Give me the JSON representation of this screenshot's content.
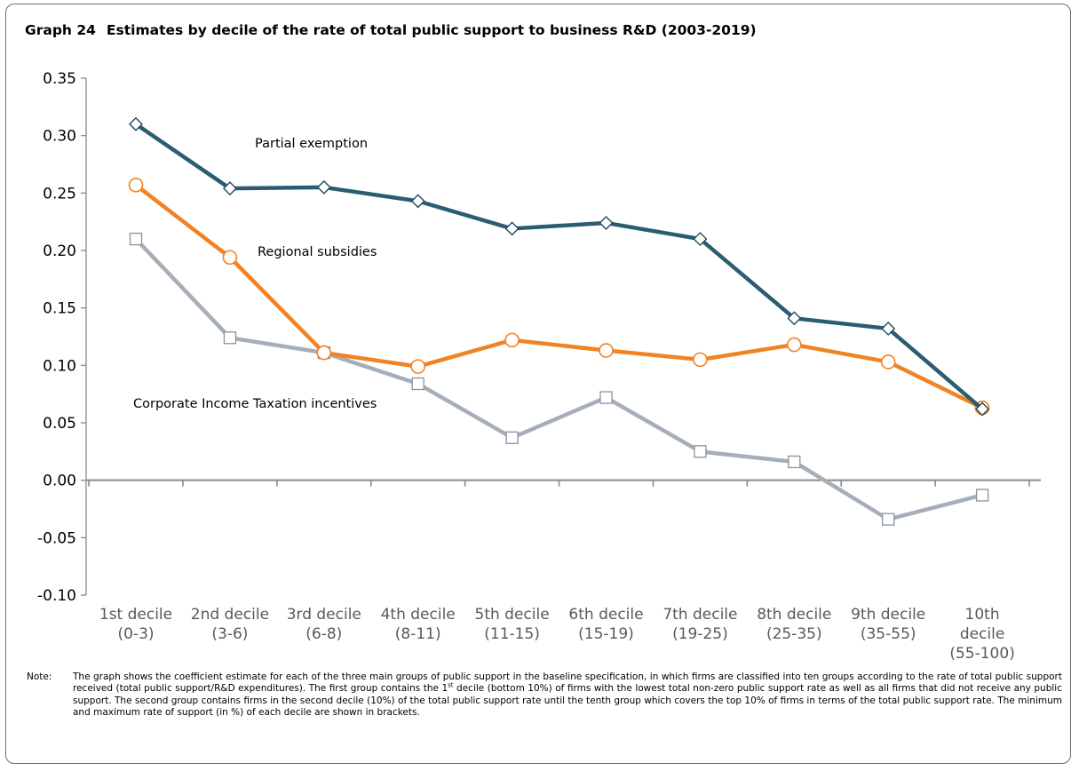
{
  "title": {
    "number": "Graph 24",
    "text": "Estimates by decile of the rate of total public support to business R&D (2003-2019)"
  },
  "chart_data": {
    "type": "line",
    "categories": [
      [
        "1st decile",
        "(0-3)"
      ],
      [
        "2nd decile",
        "(3-6)"
      ],
      [
        "3rd decile",
        "(6-8)"
      ],
      [
        "4th decile",
        "(8-11)"
      ],
      [
        "5th decile",
        "(11-15)"
      ],
      [
        "6th decile",
        "(15-19)"
      ],
      [
        "7th decile",
        "(19-25)"
      ],
      [
        "8th decile",
        "(25-35)"
      ],
      [
        "9th decile",
        "(35-55)"
      ],
      [
        "10th",
        "decile",
        "(55-100)"
      ]
    ],
    "ylim": [
      -0.1,
      0.35
    ],
    "yticks": [
      -0.1,
      -0.05,
      0.0,
      0.05,
      0.1,
      0.15,
      0.2,
      0.25,
      0.3,
      0.35
    ],
    "ytick_labels": [
      "-0.10",
      "-0.05",
      "0.00",
      "0.05",
      "0.10",
      "0.15",
      "0.20",
      "0.25",
      "0.30",
      "0.35"
    ],
    "grid": false,
    "series": [
      {
        "name": "Partial exemption",
        "color": "#2b5d72",
        "marker": "diamond",
        "values": [
          0.31,
          0.254,
          0.255,
          0.243,
          0.219,
          0.224,
          0.21,
          0.141,
          0.132,
          0.062
        ]
      },
      {
        "name": "Regional subsidies",
        "color": "#f08324",
        "marker": "circle",
        "values": [
          0.257,
          0.194,
          0.111,
          0.099,
          0.122,
          0.113,
          0.105,
          0.118,
          0.103,
          0.063
        ]
      },
      {
        "name": "Corporate Income Taxation incentives",
        "color": "#a5aeb9",
        "marker": "square",
        "values": [
          0.21,
          0.124,
          0.111,
          0.084,
          0.037,
          0.072,
          0.025,
          0.016,
          -0.034,
          -0.013
        ]
      }
    ]
  },
  "note": {
    "label": "Note:",
    "part1": "The graph shows the coefficient estimate for each of the three main groups of public support in the baseline specification, in which firms are classified into ten groups according to the rate of total public support received (total public support/R&D expenditures). The first group contains the 1",
    "sup1": "st",
    "part2": " decile (bottom 10%) of firms with the lowest total non-zero public support rate as well as all firms that did not receive any public support. The second group contains firms in the second decile (10%) of the total public support rate until the tenth group which covers the top 10% of firms in terms of the total public support rate. The minimum and maximum rate of support (in %) of each decile are shown in brackets."
  }
}
